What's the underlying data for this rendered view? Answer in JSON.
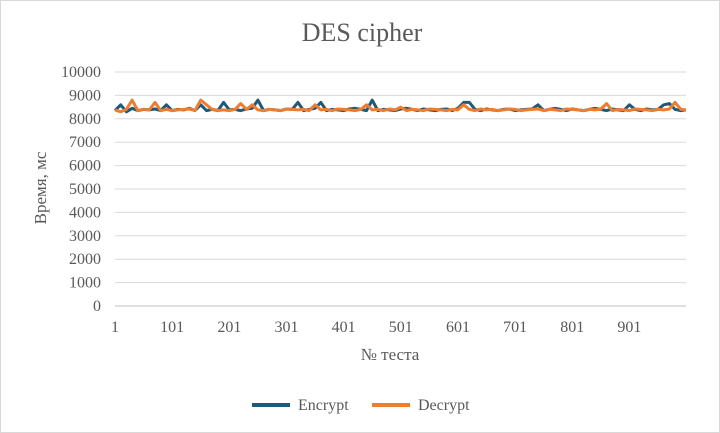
{
  "chart_data": {
    "type": "line",
    "title": "DES cipher",
    "xlabel": "№ теста",
    "ylabel": "Время, мс",
    "ylim": [
      0,
      10000
    ],
    "yticks": [
      0,
      1000,
      2000,
      3000,
      4000,
      5000,
      6000,
      7000,
      8000,
      9000,
      10000
    ],
    "xlim": [
      1,
      1000
    ],
    "xticks": [
      1,
      101,
      201,
      301,
      401,
      501,
      601,
      701,
      801,
      901
    ],
    "grid": true,
    "legend_position": "bottom",
    "series": [
      {
        "name": "Encrypt",
        "color": "#1f5a78",
        "points": [
          [
            1,
            8350
          ],
          [
            11,
            8600
          ],
          [
            21,
            8300
          ],
          [
            31,
            8450
          ],
          [
            41,
            8350
          ],
          [
            51,
            8400
          ],
          [
            61,
            8380
          ],
          [
            71,
            8420
          ],
          [
            81,
            8350
          ],
          [
            91,
            8600
          ],
          [
            101,
            8350
          ],
          [
            111,
            8400
          ],
          [
            121,
            8380
          ],
          [
            131,
            8450
          ],
          [
            141,
            8350
          ],
          [
            151,
            8600
          ],
          [
            161,
            8350
          ],
          [
            171,
            8400
          ],
          [
            181,
            8350
          ],
          [
            191,
            8700
          ],
          [
            201,
            8380
          ],
          [
            211,
            8400
          ],
          [
            221,
            8350
          ],
          [
            231,
            8420
          ],
          [
            241,
            8450
          ],
          [
            251,
            8800
          ],
          [
            261,
            8350
          ],
          [
            271,
            8400
          ],
          [
            281,
            8380
          ],
          [
            291,
            8350
          ],
          [
            301,
            8420
          ],
          [
            311,
            8400
          ],
          [
            321,
            8700
          ],
          [
            331,
            8350
          ],
          [
            341,
            8400
          ],
          [
            351,
            8450
          ],
          [
            361,
            8700
          ],
          [
            371,
            8350
          ],
          [
            381,
            8400
          ],
          [
            391,
            8380
          ],
          [
            401,
            8350
          ],
          [
            411,
            8420
          ],
          [
            421,
            8450
          ],
          [
            431,
            8400
          ],
          [
            441,
            8350
          ],
          [
            451,
            8800
          ],
          [
            461,
            8350
          ],
          [
            471,
            8400
          ],
          [
            481,
            8380
          ],
          [
            491,
            8350
          ],
          [
            501,
            8420
          ],
          [
            511,
            8450
          ],
          [
            521,
            8400
          ],
          [
            531,
            8350
          ],
          [
            541,
            8420
          ],
          [
            551,
            8380
          ],
          [
            561,
            8350
          ],
          [
            571,
            8400
          ],
          [
            581,
            8420
          ],
          [
            591,
            8350
          ],
          [
            601,
            8450
          ],
          [
            611,
            8700
          ],
          [
            621,
            8700
          ],
          [
            631,
            8400
          ],
          [
            641,
            8350
          ],
          [
            651,
            8420
          ],
          [
            661,
            8380
          ],
          [
            671,
            8350
          ],
          [
            681,
            8400
          ],
          [
            691,
            8420
          ],
          [
            701,
            8350
          ],
          [
            711,
            8380
          ],
          [
            721,
            8400
          ],
          [
            731,
            8420
          ],
          [
            741,
            8600
          ],
          [
            751,
            8350
          ],
          [
            761,
            8400
          ],
          [
            771,
            8450
          ],
          [
            781,
            8400
          ],
          [
            791,
            8350
          ],
          [
            801,
            8420
          ],
          [
            811,
            8380
          ],
          [
            821,
            8350
          ],
          [
            831,
            8400
          ],
          [
            841,
            8450
          ],
          [
            851,
            8400
          ],
          [
            861,
            8350
          ],
          [
            871,
            8420
          ],
          [
            881,
            8380
          ],
          [
            891,
            8350
          ],
          [
            901,
            8600
          ],
          [
            911,
            8400
          ],
          [
            921,
            8350
          ],
          [
            931,
            8420
          ],
          [
            941,
            8380
          ],
          [
            951,
            8400
          ],
          [
            961,
            8600
          ],
          [
            971,
            8650
          ],
          [
            981,
            8400
          ],
          [
            991,
            8350
          ],
          [
            1000,
            8380
          ]
        ]
      },
      {
        "name": "Decrypt",
        "color": "#ed7d31",
        "points": [
          [
            1,
            8380
          ],
          [
            11,
            8300
          ],
          [
            21,
            8400
          ],
          [
            31,
            8800
          ],
          [
            41,
            8350
          ],
          [
            51,
            8400
          ],
          [
            61,
            8380
          ],
          [
            71,
            8700
          ],
          [
            81,
            8350
          ],
          [
            91,
            8400
          ],
          [
            101,
            8350
          ],
          [
            111,
            8380
          ],
          [
            121,
            8400
          ],
          [
            131,
            8420
          ],
          [
            141,
            8350
          ],
          [
            151,
            8800
          ],
          [
            161,
            8600
          ],
          [
            171,
            8400
          ],
          [
            181,
            8350
          ],
          [
            191,
            8380
          ],
          [
            201,
            8350
          ],
          [
            211,
            8400
          ],
          [
            221,
            8650
          ],
          [
            231,
            8400
          ],
          [
            241,
            8600
          ],
          [
            251,
            8380
          ],
          [
            261,
            8350
          ],
          [
            271,
            8400
          ],
          [
            281,
            8380
          ],
          [
            291,
            8350
          ],
          [
            301,
            8420
          ],
          [
            311,
            8400
          ],
          [
            321,
            8380
          ],
          [
            331,
            8400
          ],
          [
            341,
            8350
          ],
          [
            351,
            8600
          ],
          [
            361,
            8380
          ],
          [
            371,
            8400
          ],
          [
            381,
            8350
          ],
          [
            391,
            8420
          ],
          [
            401,
            8400
          ],
          [
            411,
            8380
          ],
          [
            421,
            8350
          ],
          [
            431,
            8400
          ],
          [
            441,
            8600
          ],
          [
            451,
            8380
          ],
          [
            461,
            8400
          ],
          [
            471,
            8350
          ],
          [
            481,
            8420
          ],
          [
            491,
            8380
          ],
          [
            501,
            8500
          ],
          [
            511,
            8350
          ],
          [
            521,
            8400
          ],
          [
            531,
            8380
          ],
          [
            541,
            8350
          ],
          [
            551,
            8420
          ],
          [
            561,
            8400
          ],
          [
            571,
            8380
          ],
          [
            581,
            8350
          ],
          [
            591,
            8400
          ],
          [
            601,
            8380
          ],
          [
            611,
            8600
          ],
          [
            621,
            8400
          ],
          [
            631,
            8350
          ],
          [
            641,
            8420
          ],
          [
            651,
            8380
          ],
          [
            661,
            8400
          ],
          [
            671,
            8350
          ],
          [
            681,
            8380
          ],
          [
            691,
            8420
          ],
          [
            701,
            8400
          ],
          [
            711,
            8350
          ],
          [
            721,
            8380
          ],
          [
            731,
            8400
          ],
          [
            741,
            8420
          ],
          [
            751,
            8350
          ],
          [
            761,
            8400
          ],
          [
            771,
            8380
          ],
          [
            781,
            8350
          ],
          [
            791,
            8420
          ],
          [
            801,
            8400
          ],
          [
            811,
            8380
          ],
          [
            821,
            8350
          ],
          [
            831,
            8400
          ],
          [
            841,
            8380
          ],
          [
            851,
            8420
          ],
          [
            861,
            8650
          ],
          [
            871,
            8350
          ],
          [
            881,
            8400
          ],
          [
            891,
            8380
          ],
          [
            901,
            8350
          ],
          [
            911,
            8420
          ],
          [
            921,
            8400
          ],
          [
            931,
            8380
          ],
          [
            941,
            8350
          ],
          [
            951,
            8400
          ],
          [
            961,
            8380
          ],
          [
            971,
            8420
          ],
          [
            981,
            8700
          ],
          [
            991,
            8400
          ],
          [
            1000,
            8380
          ]
        ]
      }
    ]
  }
}
